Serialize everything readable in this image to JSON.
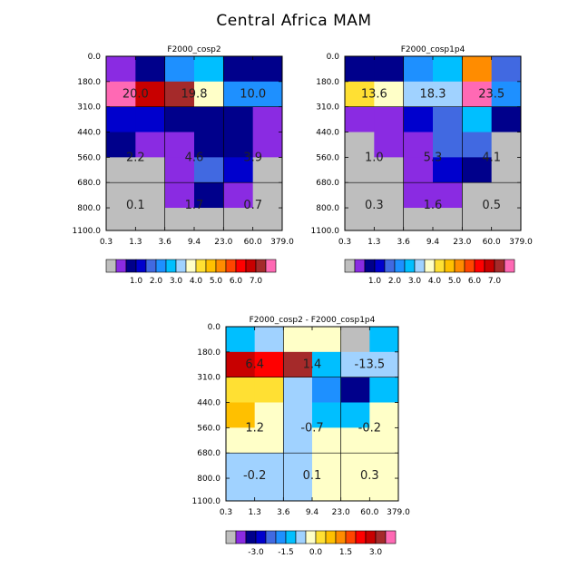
{
  "page_title": "Central Africa MAM",
  "tau_ticks": [
    "0.3",
    "1.3",
    "3.6",
    "9.4",
    "23.0",
    "60.0",
    "379.0"
  ],
  "ctp_ticks": [
    "0.0",
    "180.0",
    "310.0",
    "440.0",
    "560.0",
    "680.0",
    "800.0",
    "1100.0"
  ],
  "color_key": {
    "abs": {
      "labels": [
        "1.0",
        "2.0",
        "3.0",
        "4.0",
        "5.0",
        "6.0",
        "7.0"
      ],
      "colors": [
        "#bebebe",
        "#8a2be2",
        "#00008b",
        "#0000cd",
        "#4169e1",
        "#1e90ff",
        "#00bfff",
        "#a0d2ff",
        "#ffffc8",
        "#ffe033",
        "#ffc000",
        "#ff8c00",
        "#ff4500",
        "#ff0000",
        "#c80000",
        "#a52a2a",
        "#ff69b4"
      ]
    },
    "diff": {
      "labels": [
        "-3.0",
        "-1.5",
        "0.0",
        "1.5",
        "3.0"
      ],
      "colors": [
        "#bebebe",
        "#8a2be2",
        "#00008b",
        "#0000cd",
        "#4169e1",
        "#1e90ff",
        "#00bfff",
        "#a0d2ff",
        "#ffffc8",
        "#ffe033",
        "#ffc000",
        "#ff8c00",
        "#ff4500",
        "#ff0000",
        "#c80000",
        "#a52a2a",
        "#ff69b4"
      ]
    }
  },
  "chart_data": [
    {
      "type": "heatmap",
      "title": "F2000_cosp2",
      "x_edges": [
        "0.3",
        "1.3",
        "3.6",
        "9.4",
        "23.0",
        "60.0",
        "379.0"
      ],
      "y_edges": [
        "0.0",
        "180.0",
        "310.0",
        "440.0",
        "560.0",
        "680.0",
        "800.0",
        "1100.0"
      ],
      "cell_colors": [
        [
          "#8a2be2",
          "#00008b",
          "#1e90ff",
          "#00bfff",
          "#00008b",
          "#00008b"
        ],
        [
          "#ff69b4",
          "#c80000",
          "#a52a2a",
          "#ffffc8",
          "#1e90ff",
          "#1e90ff"
        ],
        [
          "#0000cd",
          "#0000cd",
          "#00008b",
          "#00008b",
          "#00008b",
          "#8a2be2"
        ],
        [
          "#00008b",
          "#8a2be2",
          "#8a2be2",
          "#00008b",
          "#00008b",
          "#8a2be2"
        ],
        [
          "#bebebe",
          "#bebebe",
          "#8a2be2",
          "#4169e1",
          "#0000cd",
          "#bebebe"
        ],
        [
          "#bebebe",
          "#bebebe",
          "#8a2be2",
          "#00008b",
          "#8a2be2",
          "#bebebe"
        ],
        [
          "#bebebe",
          "#bebebe",
          "#bebebe",
          "#bebebe",
          "#bebebe",
          "#bebebe"
        ]
      ],
      "region_labels": [
        "20.0",
        "19.8",
        "10.0",
        "2.2",
        "4.6",
        "3.9",
        "0.1",
        "1.7",
        "0.7"
      ]
    },
    {
      "type": "heatmap",
      "title": "F2000_cosp1p4",
      "x_edges": [
        "0.3",
        "1.3",
        "3.6",
        "9.4",
        "23.0",
        "60.0",
        "379.0"
      ],
      "y_edges": [
        "0.0",
        "180.0",
        "310.0",
        "440.0",
        "560.0",
        "680.0",
        "800.0",
        "1100.0"
      ],
      "cell_colors": [
        [
          "#00008b",
          "#00008b",
          "#1e90ff",
          "#00bfff",
          "#ff8c00",
          "#4169e1"
        ],
        [
          "#ffe033",
          "#ffffc8",
          "#a0d2ff",
          "#a0d2ff",
          "#ff69b4",
          "#1e90ff"
        ],
        [
          "#8a2be2",
          "#8a2be2",
          "#0000cd",
          "#4169e1",
          "#00bfff",
          "#00008b"
        ],
        [
          "#bebebe",
          "#8a2be2",
          "#8a2be2",
          "#4169e1",
          "#4169e1",
          "#bebebe"
        ],
        [
          "#bebebe",
          "#bebebe",
          "#8a2be2",
          "#0000cd",
          "#00008b",
          "#bebebe"
        ],
        [
          "#bebebe",
          "#bebebe",
          "#8a2be2",
          "#8a2be2",
          "#bebebe",
          "#bebebe"
        ],
        [
          "#bebebe",
          "#bebebe",
          "#bebebe",
          "#bebebe",
          "#bebebe",
          "#bebebe"
        ]
      ],
      "region_labels": [
        "13.6",
        "18.3",
        "23.5",
        "1.0",
        "5.3",
        "4.1",
        "0.3",
        "1.6",
        "0.5"
      ]
    },
    {
      "type": "heatmap",
      "title": "F2000_cosp2 - F2000_cosp1p4",
      "x_edges": [
        "0.3",
        "1.3",
        "3.6",
        "9.4",
        "23.0",
        "60.0",
        "379.0"
      ],
      "y_edges": [
        "0.0",
        "180.0",
        "310.0",
        "440.0",
        "560.0",
        "680.0",
        "800.0",
        "1100.0"
      ],
      "cell_colors": [
        [
          "#00bfff",
          "#a0d2ff",
          "#ffffc8",
          "#ffffc8",
          "#bebebe",
          "#00bfff"
        ],
        [
          "#c80000",
          "#ff0000",
          "#a52a2a",
          "#00bfff",
          "#a0d2ff",
          "#a0d2ff"
        ],
        [
          "#ffe033",
          "#ffe033",
          "#a0d2ff",
          "#1e90ff",
          "#00008b",
          "#00bfff"
        ],
        [
          "#ffc000",
          "#ffffc8",
          "#a0d2ff",
          "#00bfff",
          "#00bfff",
          "#ffffc8"
        ],
        [
          "#ffffc8",
          "#ffffc8",
          "#a0d2ff",
          "#ffffc8",
          "#ffffc8",
          "#ffffc8"
        ],
        [
          "#a0d2ff",
          "#a0d2ff",
          "#a0d2ff",
          "#ffffc8",
          "#ffffc8",
          "#ffffc8"
        ],
        [
          "#a0d2ff",
          "#a0d2ff",
          "#a0d2ff",
          "#ffffc8",
          "#ffffc8",
          "#ffffc8"
        ]
      ],
      "region_labels": [
        "6.4",
        "1.4",
        "-13.5",
        "1.2",
        "-0.7",
        "-0.2",
        "-0.2",
        "0.1",
        "0.3"
      ]
    }
  ]
}
